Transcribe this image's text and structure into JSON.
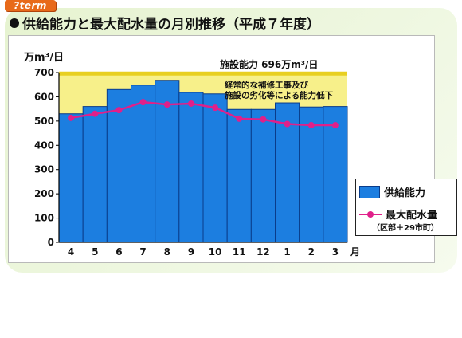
{
  "header": {
    "logo_text": "term",
    "title": "供給能力と最大配水量の月別推移（平成７年度）"
  },
  "chart_data": {
    "type": "bar",
    "title": "供給能力と最大配水量の月別推移（平成７年度）",
    "ylabel": "万m³/日",
    "x_unit": "月",
    "categories": [
      "4",
      "5",
      "6",
      "7",
      "8",
      "9",
      "10",
      "11",
      "12",
      "1",
      "2",
      "3"
    ],
    "ylim": [
      0,
      700
    ],
    "yticks": [
      0,
      100,
      200,
      300,
      400,
      500,
      600,
      700
    ],
    "grid": false,
    "legend_position": "bottom-right",
    "capacity_label": "施設能力 696万m³/日",
    "capacity_value": 696,
    "annotation": [
      "経常的な補修工事及び",
      "施設の劣化等による能力低下"
    ],
    "series": [
      {
        "name": "供給能力",
        "type": "bar",
        "color": "#1c7ee0",
        "values": [
          530,
          560,
          630,
          648,
          668,
          618,
          612,
          548,
          548,
          575,
          558,
          560
        ]
      },
      {
        "name": "最大配水量",
        "type": "line",
        "color": "#e0208a",
        "values": [
          513,
          530,
          545,
          578,
          568,
          572,
          555,
          510,
          507,
          488,
          483,
          483
        ]
      }
    ],
    "legend_sub": "（区部＋29市町）"
  }
}
